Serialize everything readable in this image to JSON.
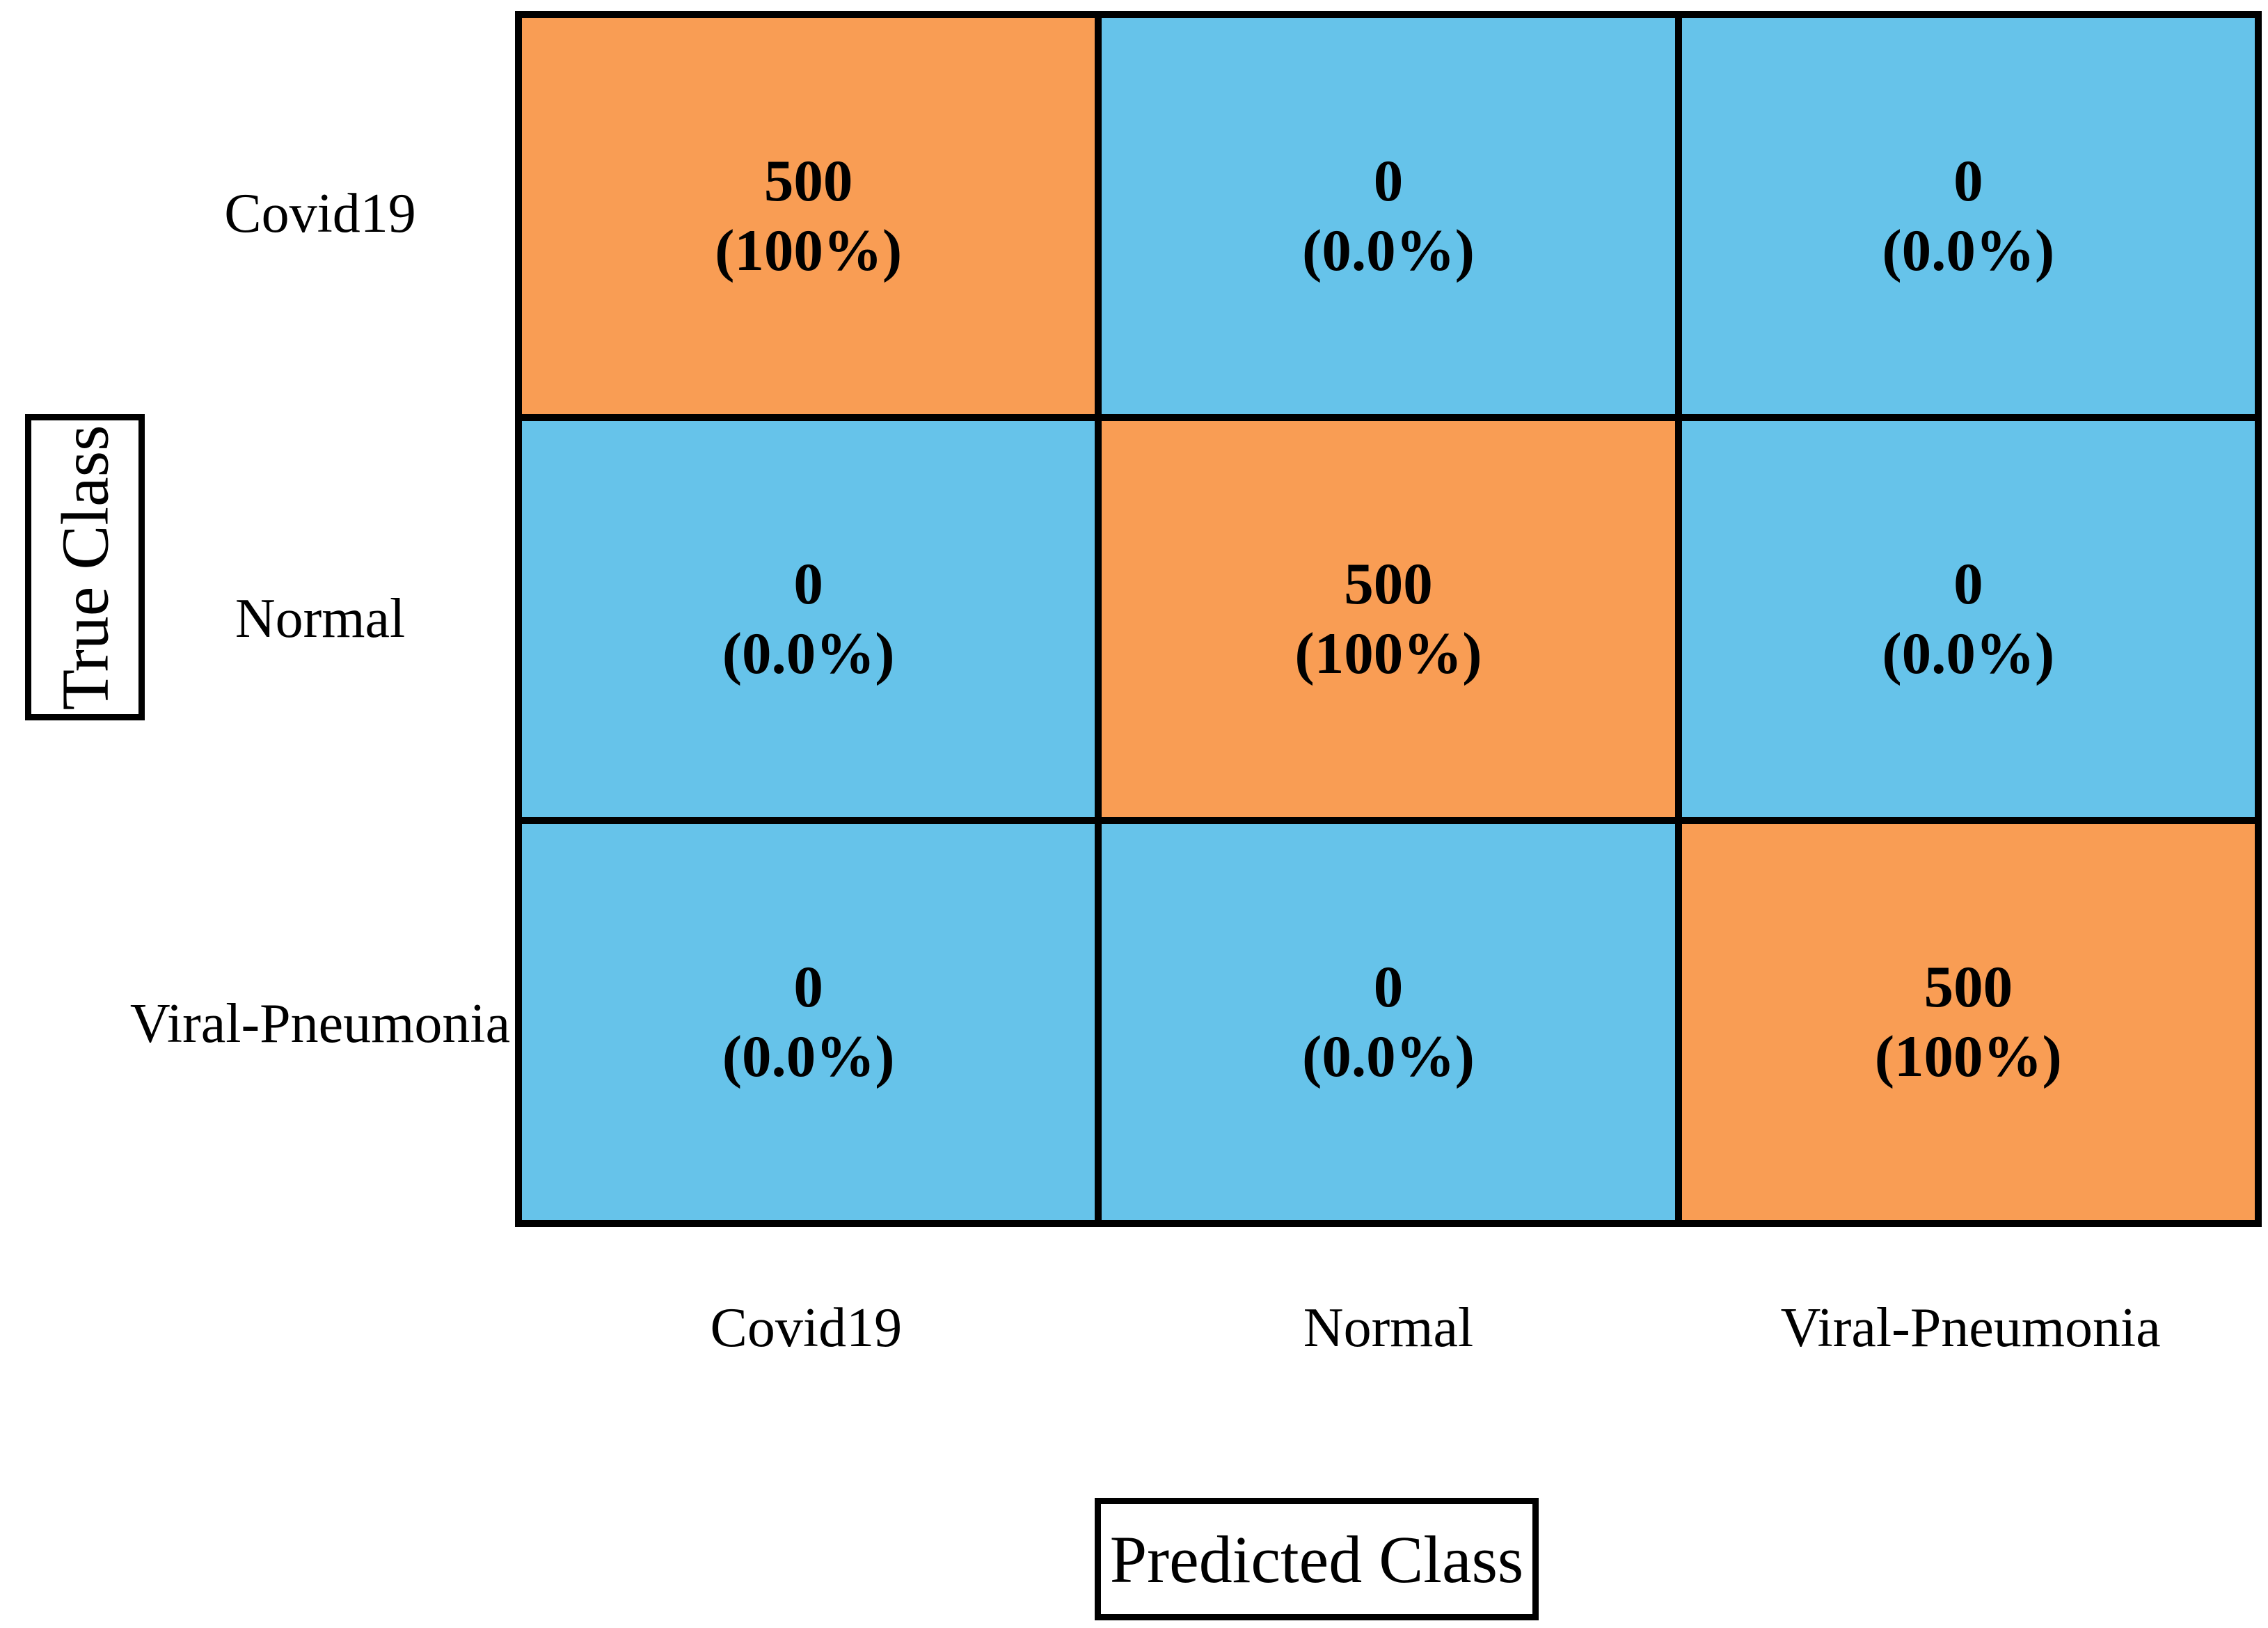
{
  "figure": {
    "x_axis_title": "Predicted Class",
    "y_axis_title": "True Class"
  },
  "colors": {
    "diagonal": "#F99D54",
    "off_diagonal": "#66C3EA",
    "border": "#000000"
  },
  "chart_data": {
    "type": "heatmap",
    "title": "",
    "xlabel": "Predicted Class",
    "ylabel": "True Class",
    "x_categories": [
      "Covid19",
      "Normal",
      "Viral-Pneumonia"
    ],
    "y_categories": [
      "Covid19",
      "Normal",
      "Viral-Pneumonia"
    ],
    "matrix_counts": [
      [
        500,
        0,
        0
      ],
      [
        0,
        500,
        0
      ],
      [
        0,
        0,
        500
      ]
    ],
    "matrix_percents": [
      [
        "100%",
        "0.0%",
        "0.0%"
      ],
      [
        "0.0%",
        "100%",
        "0.0%"
      ],
      [
        "0.0%",
        "0.0%",
        "100%"
      ]
    ],
    "legend": "off",
    "grid": "off",
    "cells": [
      {
        "row": "Covid19",
        "col": "Covid19",
        "count_label": "500",
        "percent_label": "(100%)",
        "diagonal": true
      },
      {
        "row": "Covid19",
        "col": "Normal",
        "count_label": "0",
        "percent_label": "(0.0%)",
        "diagonal": false
      },
      {
        "row": "Covid19",
        "col": "Viral-Pneumonia",
        "count_label": "0",
        "percent_label": "(0.0%)",
        "diagonal": false
      },
      {
        "row": "Normal",
        "col": "Covid19",
        "count_label": "0",
        "percent_label": "(0.0%)",
        "diagonal": false
      },
      {
        "row": "Normal",
        "col": "Normal",
        "count_label": "500",
        "percent_label": "(100%)",
        "diagonal": true
      },
      {
        "row": "Normal",
        "col": "Viral-Pneumonia",
        "count_label": "0",
        "percent_label": "(0.0%)",
        "diagonal": false
      },
      {
        "row": "Viral-Pneumonia",
        "col": "Covid19",
        "count_label": "0",
        "percent_label": "(0.0%)",
        "diagonal": false
      },
      {
        "row": "Viral-Pneumonia",
        "col": "Normal",
        "count_label": "0",
        "percent_label": "(0.0%)",
        "diagonal": false
      },
      {
        "row": "Viral-Pneumonia",
        "col": "Viral-Pneumonia",
        "count_label": "500",
        "percent_label": "(100%)",
        "diagonal": true
      }
    ]
  }
}
